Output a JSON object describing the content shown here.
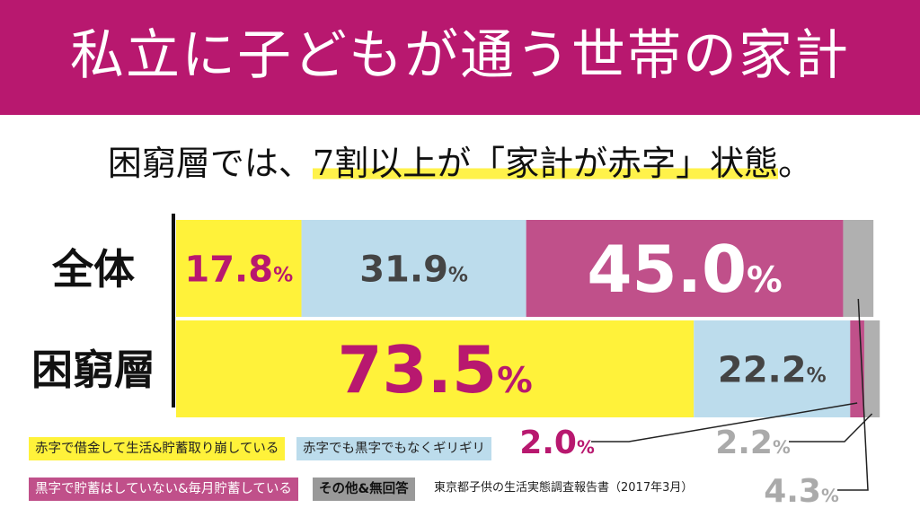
{
  "header": {
    "title": "私立に子どもが通う世帯の家計",
    "subtitle_part1": "困窮層では、",
    "subtitle_highlight": "7割以上が「家計が赤字」状態",
    "subtitle_part2": "。"
  },
  "colors": {
    "brand": "#b8186f",
    "deficit": "#fff23a",
    "breakeven": "#bcdcec",
    "surplus": "#c0508a",
    "other": "#b0b0b0"
  },
  "chart_data": {
    "type": "bar",
    "orientation": "horizontal",
    "stacked": true,
    "unit": "%",
    "categories": [
      "全体",
      "困窮層"
    ],
    "series": [
      {
        "name": "赤字で借金して生活&貯蓄取り崩している",
        "values": [
          17.8,
          73.5
        ],
        "labels": [
          "17.8%",
          "73.5%"
        ],
        "color": "#fff23a"
      },
      {
        "name": "赤字でも黒字でもなくギリギリ",
        "values": [
          31.9,
          22.2
        ],
        "labels": [
          "31.9%",
          "22.2%"
        ],
        "color": "#bcdcec"
      },
      {
        "name": "黒字で貯蓄はしていない&毎月貯蓄している",
        "values": [
          45.0,
          2.0
        ],
        "labels": [
          "45.0%",
          "2.0%"
        ],
        "color": "#c0508a"
      },
      {
        "name": "その他&無回答",
        "values": [
          4.3,
          2.2
        ],
        "labels": [
          "4.3%",
          "2.2%"
        ],
        "color": "#b0b0b0"
      }
    ],
    "xlim": [
      0,
      100
    ],
    "legend_position": "bottom-left"
  },
  "source": "東京都子供の生活実態調査報告書（2017年3月）"
}
